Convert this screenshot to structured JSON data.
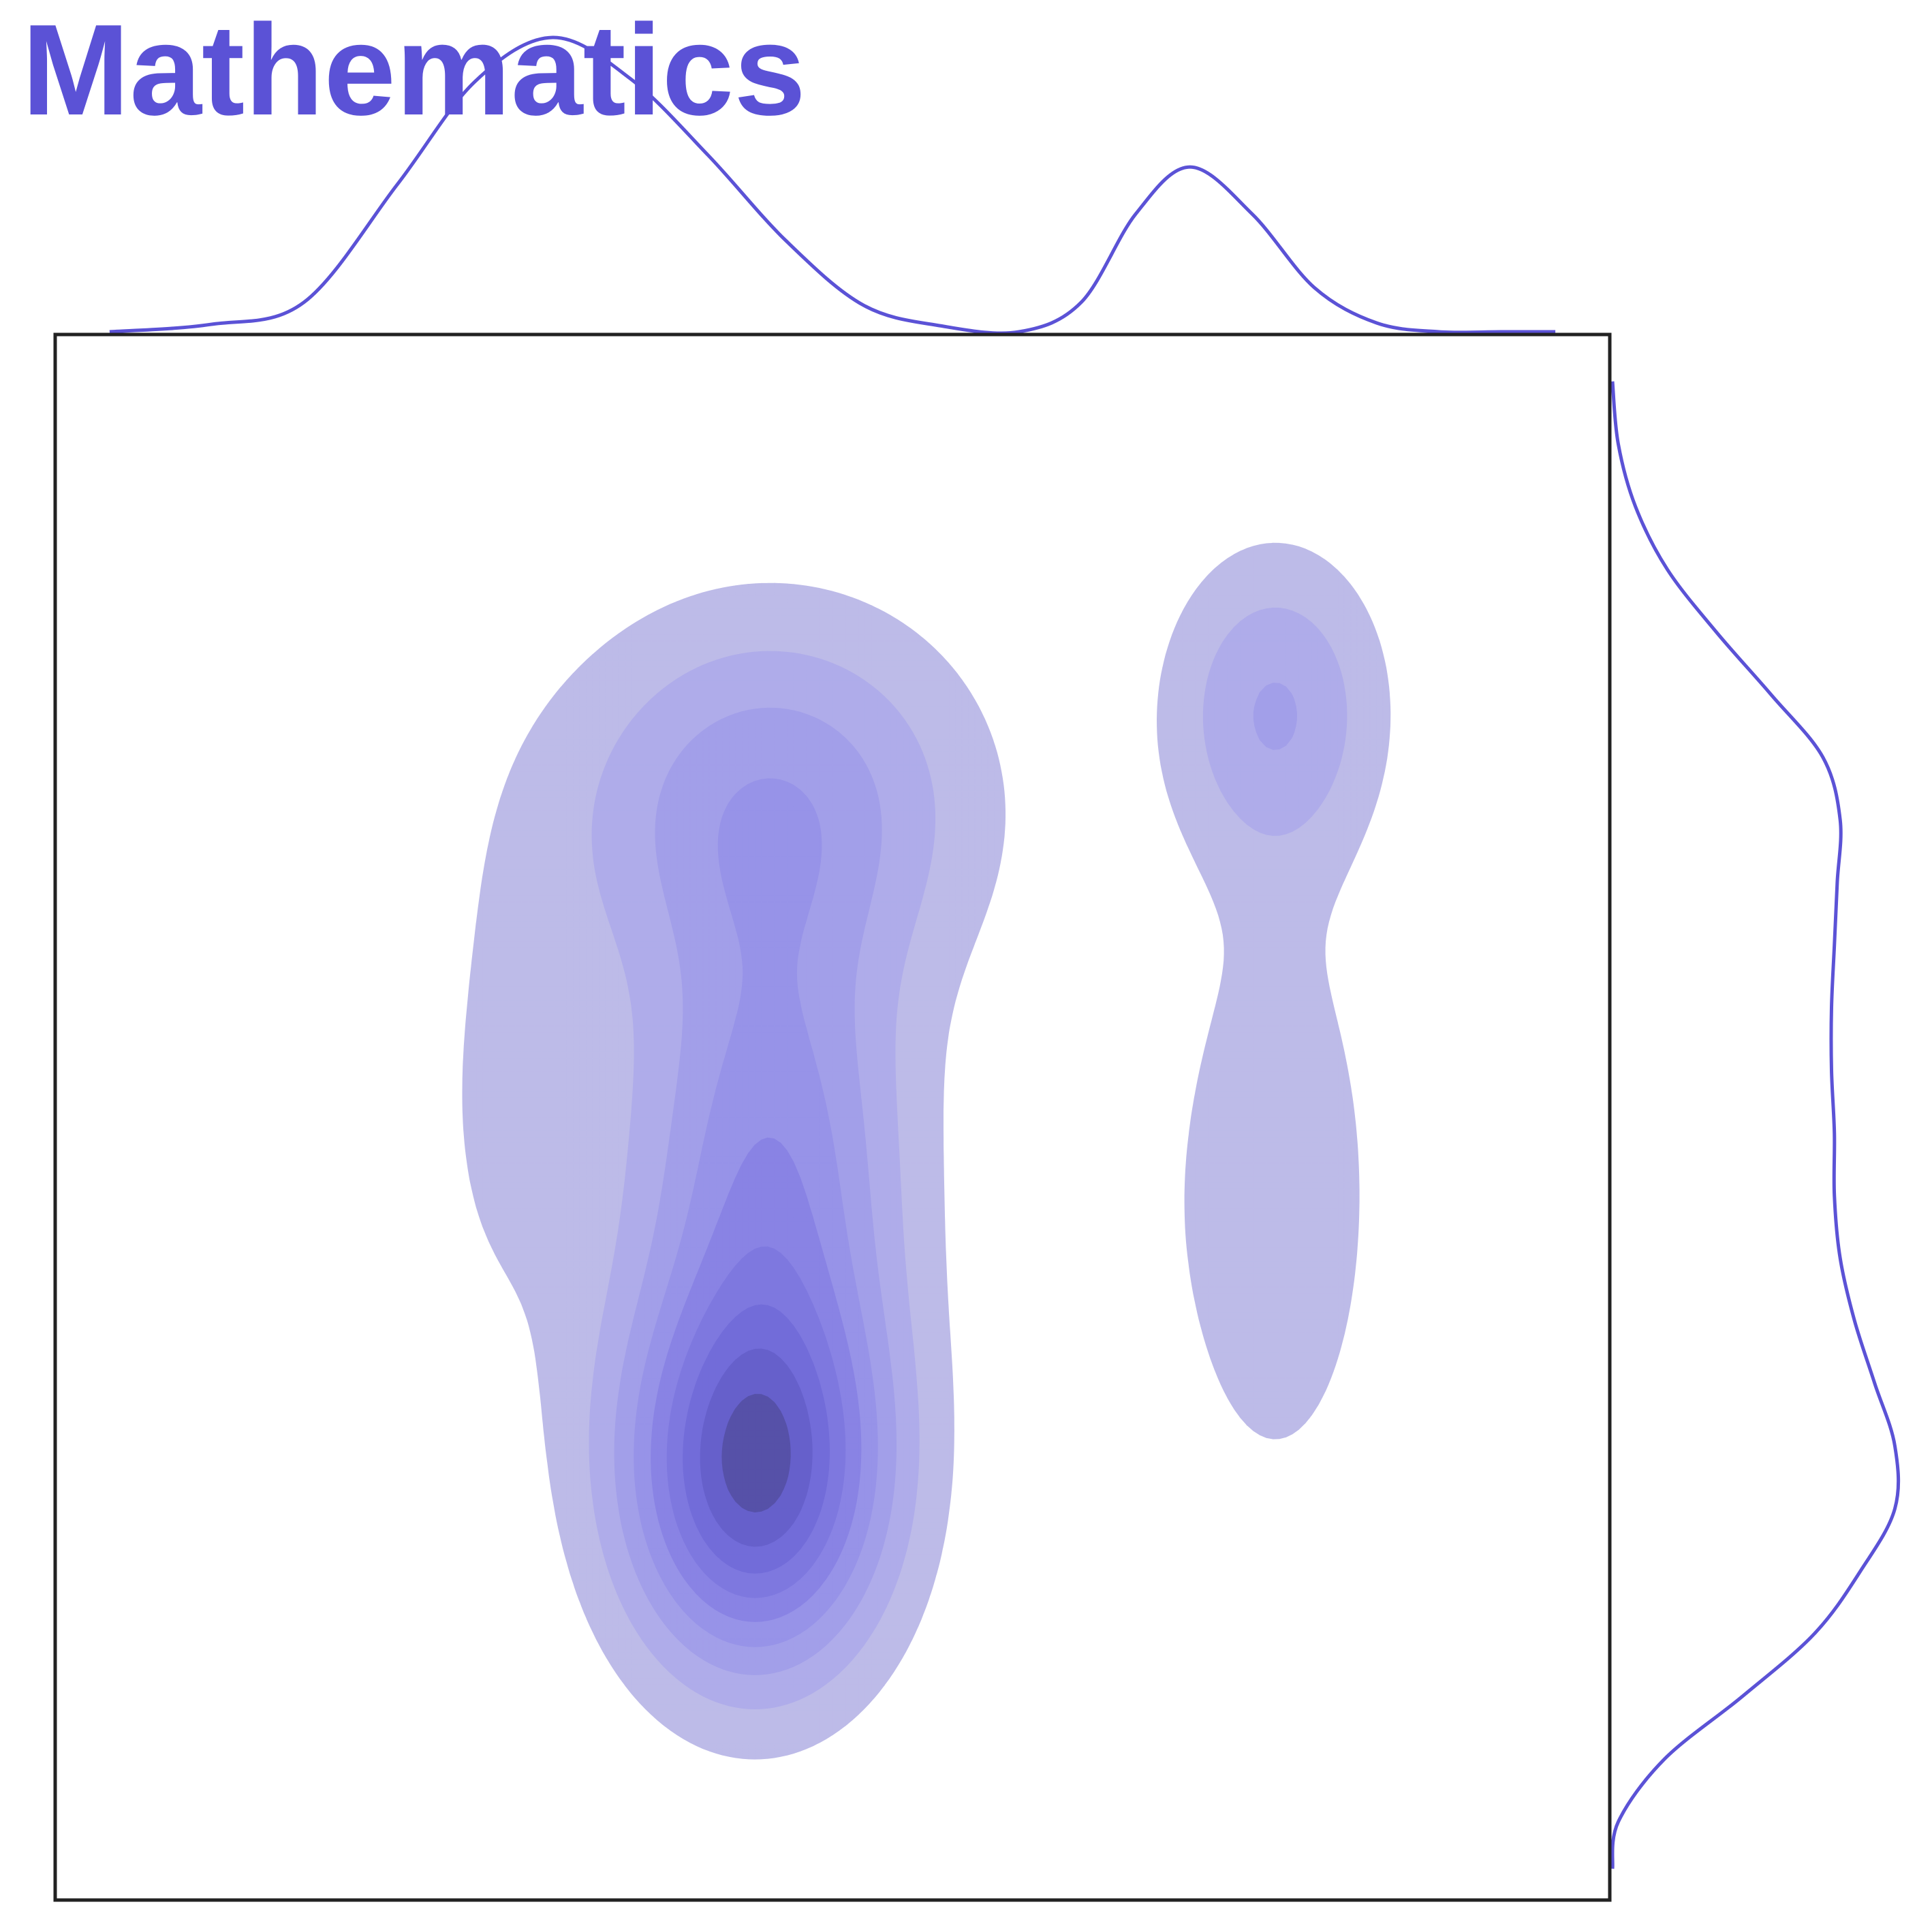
{
  "chart_data": {
    "type": "kde-joint",
    "title": "Mathematics",
    "xlabel": "",
    "ylabel": "",
    "xlim": [
      0,
      100
    ],
    "ylim": [
      0,
      100
    ],
    "grid": false,
    "legend": "none",
    "levels": 9,
    "colors": {
      "accent": "#5b52d6",
      "levels": [
        "#bdbbe8",
        "#afacea",
        "#a29fe9",
        "#9793e8",
        "#8983e4",
        "#7e78df",
        "#726cd9",
        "#6660cb",
        "#5651a8"
      ],
      "frame": "#222222"
    },
    "components": [
      {
        "x": 45.0,
        "y": 27.0,
        "sx": 5.8,
        "sy": 8.5,
        "w": 1.0
      },
      {
        "x": 46.0,
        "y": 47.0,
        "sx": 6.0,
        "sy": 11.0,
        "w": 0.52
      },
      {
        "x": 46.0,
        "y": 70.0,
        "sx": 9.0,
        "sy": 8.5,
        "w": 0.42
      },
      {
        "x": 78.5,
        "y": 76.0,
        "sx": 4.8,
        "sy": 7.0,
        "w": 0.34
      },
      {
        "x": 78.5,
        "y": 45.0,
        "sx": 4.5,
        "sy": 13.0,
        "w": 0.22
      },
      {
        "x": 29.0,
        "y": 50.0,
        "sx": 5.0,
        "sy": 14.0,
        "w": 0.12
      },
      {
        "x": 66.0,
        "y": 42.0,
        "sx": 3.5,
        "sy": 12.0,
        "w": 0.08
      }
    ],
    "x_marginal": {
      "x": [
        3.5,
        10,
        16,
        22,
        27,
        32,
        37,
        42,
        47,
        52,
        57,
        62,
        66,
        69.5,
        73,
        77,
        81,
        85,
        89,
        93,
        96.5
      ],
      "density": [
        0.0,
        0.025,
        0.1,
        0.5,
        0.85,
        1.0,
        0.86,
        0.6,
        0.31,
        0.09,
        0.02,
        0.0,
        0.1,
        0.4,
        0.56,
        0.4,
        0.15,
        0.03,
        0.0,
        0.0,
        0.0
      ]
    },
    "y_marginal": {
      "y": [
        2,
        5,
        9,
        13,
        17,
        21,
        25,
        29,
        33,
        37,
        41,
        45,
        49,
        53,
        57,
        61,
        65,
        69,
        73,
        77,
        81,
        85,
        89,
        93,
        97
      ],
      "density": [
        0.0,
        0.02,
        0.18,
        0.45,
        0.7,
        0.86,
        0.98,
        0.98,
        0.91,
        0.84,
        0.79,
        0.77,
        0.77,
        0.76,
        0.76,
        0.77,
        0.78,
        0.79,
        0.73,
        0.55,
        0.36,
        0.19,
        0.08,
        0.02,
        0.0
      ]
    }
  }
}
